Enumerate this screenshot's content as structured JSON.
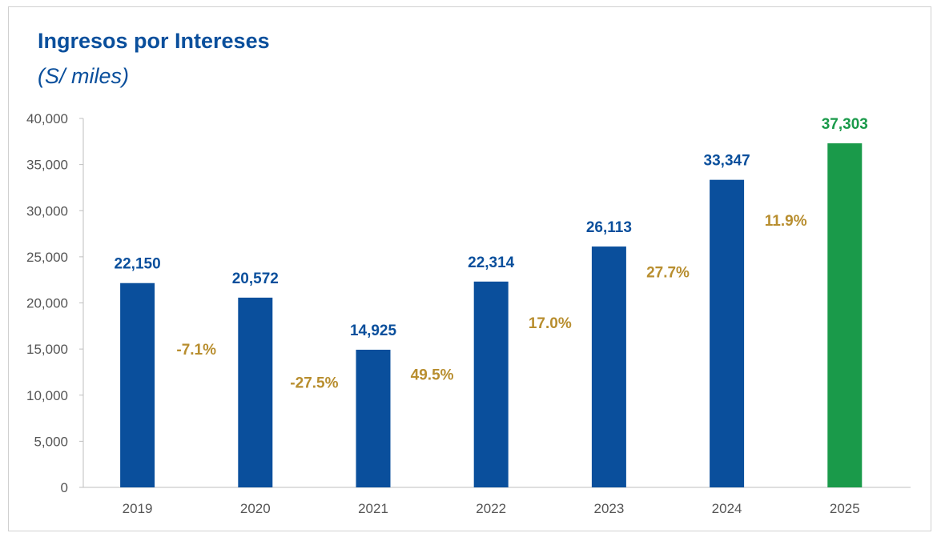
{
  "chart_data": {
    "type": "bar",
    "title": "Ingresos por Intereses",
    "subtitle": "(S/ miles)",
    "categories": [
      "2019",
      "2020",
      "2021",
      "2022",
      "2023",
      "2024",
      "2025"
    ],
    "values": [
      22150,
      20572,
      14925,
      22314,
      26113,
      33347,
      37303
    ],
    "value_labels": [
      "22,150",
      "20,572",
      "14,925",
      "22,314",
      "26,113",
      "33,347",
      "37,303"
    ],
    "growth_labels": [
      "-7.1%",
      "-27.5%",
      "49.5%",
      "17.0%",
      "27.7%",
      "11.9%"
    ],
    "yticks": [
      "0",
      "5,000",
      "10,000",
      "15,000",
      "20,000",
      "25,000",
      "30,000",
      "35,000",
      "40,000"
    ],
    "ylim": [
      0,
      40000
    ],
    "grid": false,
    "legend": "none",
    "colors": {
      "bar": "#0a4f9c",
      "highlight_bar": "#1a9a4a",
      "growth_label": "#b88e2f",
      "axis": "#bfbfbf"
    }
  }
}
